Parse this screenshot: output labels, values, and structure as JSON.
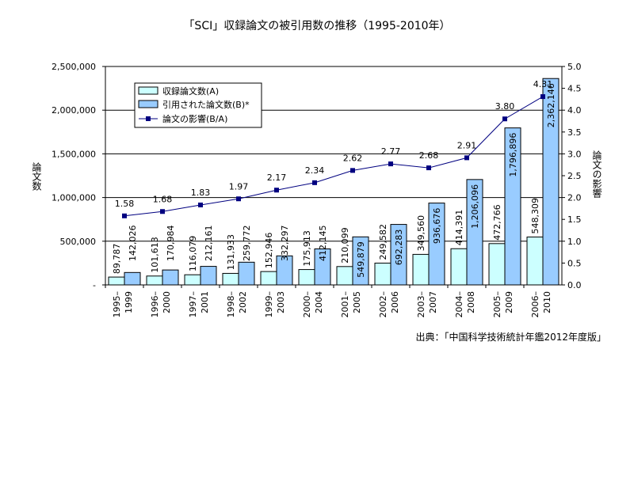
{
  "chart_data": {
    "type": "bar",
    "title": "「SCI」収録論文の被引用数の推移（1995-2010年）",
    "ylabel": "論文数",
    "y2label": "論文の影響",
    "source": "出典：「中国科学技術統計年鑑2012年度版」",
    "ylim": [
      0,
      2500000
    ],
    "y2lim": [
      0,
      5.0
    ],
    "grid": true,
    "legend_position": "top-left",
    "yticks": [
      "-",
      "500,000",
      "1,000,000",
      "1,500,000",
      "2,000,000",
      "2,500,000"
    ],
    "y2ticks": [
      "0.0",
      "0.5",
      "1.0",
      "1.5",
      "2.0",
      "2.5",
      "3.0",
      "3.5",
      "4.0",
      "4.5",
      "5.0"
    ],
    "categories": [
      [
        "1995–",
        "1999"
      ],
      [
        "1996–",
        "2000"
      ],
      [
        "1997–",
        "2001"
      ],
      [
        "1998–",
        "2002"
      ],
      [
        "1999–",
        "2003"
      ],
      [
        "2000–",
        "2004"
      ],
      [
        "2001–",
        "2005"
      ],
      [
        "2002–",
        "2006"
      ],
      [
        "2003–",
        "2007"
      ],
      [
        "2004–",
        "2008"
      ],
      [
        "2005–",
        "2009"
      ],
      [
        "2006–",
        "2010"
      ]
    ],
    "series": [
      {
        "name": "収録論文数(A)",
        "type": "bar",
        "color": "#ccffff",
        "values": [
          89787,
          101613,
          116079,
          131933,
          152946,
          175913,
          210099,
          249582,
          349560,
          414391,
          472766,
          548309
        ],
        "labels": [
          "89,787",
          "101,613",
          "116,079",
          "131,933",
          "152,946",
          "175,913",
          "210,099",
          "249,582",
          "349,560",
          "414,391",
          "472,766",
          "548,309"
        ]
      },
      {
        "name": "引用された論文数(B)*",
        "type": "bar",
        "color": "#99ccff",
        "values": [
          142026,
          170984,
          212161,
          259772,
          332297,
          412145,
          549879,
          692283,
          936676,
          1206096,
          1796896,
          2362146
        ],
        "labels": [
          "142,026",
          "170,984",
          "212,161",
          "259,772",
          "332,297",
          "412,145",
          "549,879",
          "692,283",
          "936,676",
          "1,206,096",
          "1,796,896",
          "2,362,146"
        ]
      },
      {
        "name": "論文の影響(B/A)",
        "type": "line",
        "axis": "right",
        "color": "#000080",
        "values": [
          1.58,
          1.68,
          1.83,
          1.97,
          2.17,
          2.34,
          2.62,
          2.77,
          2.68,
          2.91,
          3.8,
          4.31
        ],
        "labels": [
          "1.58",
          "1.68",
          "1.83",
          "1.97",
          "2.17",
          "2.34",
          "2.62",
          "2.77",
          "2.68",
          "2.91",
          "3.80",
          "4.31"
        ]
      }
    ]
  }
}
